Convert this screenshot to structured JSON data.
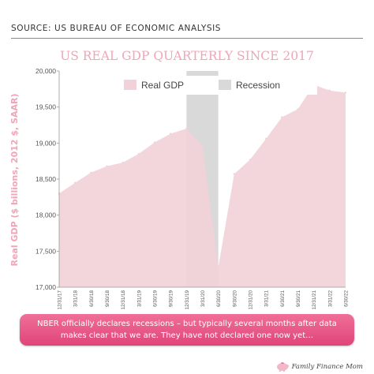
{
  "header": {
    "source": "SOURCE: US BUREAU OF ECONOMIC ANALYSIS"
  },
  "callout": {
    "text": "NBER officially declares recessions – but typically several months after data makes clear that we are. They have not declared one now yet…"
  },
  "brand": {
    "name": "Family Finance Mom",
    "icon": "piggy-bank-icon"
  },
  "colors": {
    "gdp_fill": "#f2d1d9",
    "recession_fill": "#d9d9d9",
    "title": "#f0a5b8",
    "ylabel": "#f0a5b8",
    "callout": "#e9557f"
  },
  "chart_data": {
    "type": "area",
    "title": "US REAL GDP QUARTERLY SINCE 2017",
    "xlabel": "",
    "ylabel": "Real GDP ($ billions, 2012 $, SAAR)",
    "ylim": [
      17000,
      20000
    ],
    "yticks": [
      "20,000",
      "19,500",
      "19,000",
      "18,500",
      "18,000",
      "17,500",
      "17,000"
    ],
    "x": [
      "12/31/17",
      "3/31/18",
      "6/30/18",
      "9/30/18",
      "12/31/18",
      "3/31/19",
      "6/30/19",
      "9/30/19",
      "12/31/19",
      "3/31/20",
      "6/30/20",
      "9/30/20",
      "12/31/20",
      "3/31/21",
      "6/30/21",
      "9/30/21",
      "12/31/21",
      "3/31/22",
      "6/30/22"
    ],
    "series": [
      {
        "name": "Real GDP",
        "values": [
          18300,
          18450,
          18590,
          18680,
          18730,
          18850,
          19010,
          19130,
          19200,
          18960,
          17280,
          18570,
          18770,
          19060,
          19360,
          19470,
          19810,
          19730,
          19700
        ]
      }
    ],
    "recession": {
      "name": "Recession",
      "start": "12/31/19",
      "end": "6/30/20"
    },
    "legend_position": "top",
    "grid": false
  }
}
